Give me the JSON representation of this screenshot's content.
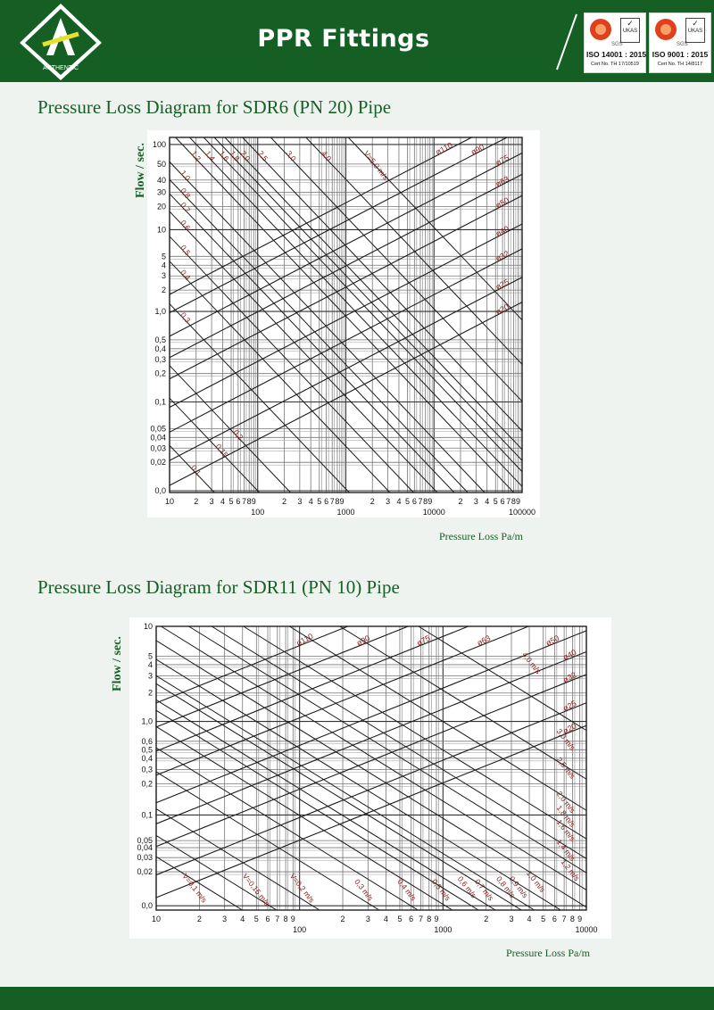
{
  "header": {
    "title": "PPR Fittings",
    "logo_text": "AUTHENTIC",
    "certificates": [
      {
        "iso": "ISO 14001 : 2015",
        "cert_no": "Cert No. TH 17/10519",
        "ukas": "UKAS",
        "sgs": "SGS"
      },
      {
        "iso": "ISO 9001 : 2015",
        "cert_no": "Cert No. TH 14/8117",
        "ukas": "UKAS",
        "sgs": "SGS"
      }
    ],
    "colors": {
      "brand_green": "#155f25",
      "accent_red": "#8b1a1a"
    }
  },
  "sections": [
    {
      "title": "Pressure Loss Diagram for SDR6 (PN 20) Pipe"
    },
    {
      "title": "Pressure Loss Diagram for SDR11 (PN 10) Pipe"
    }
  ],
  "chart_data": [
    {
      "type": "line",
      "title": "Pressure Loss Diagram for SDR6 (PN 20) Pipe",
      "xlabel": "Pressure Loss Pa/m",
      "ylabel": "Flow / sec.",
      "x_scale": "log",
      "y_scale": "log",
      "xlim": [
        10,
        100000
      ],
      "ylim": [
        0.0,
        100
      ],
      "x_ticks": [
        "10",
        "2",
        "3",
        "4",
        "5",
        "6",
        "7",
        "8",
        "9",
        "100",
        "2",
        "3",
        "4",
        "5",
        "6",
        "7",
        "8",
        "9",
        "1000",
        "2",
        "3",
        "4",
        "5",
        "6",
        "7",
        "8",
        "9",
        "10000",
        "2",
        "3",
        "4",
        "5",
        "6",
        "7",
        "8",
        "9",
        "100000"
      ],
      "y_ticks": [
        "100",
        "50",
        "40",
        "30",
        "20",
        "10",
        "5",
        "4",
        "3",
        "2",
        "1,0",
        "0,5",
        "0,4",
        "0,3",
        "0,2",
        "0,1",
        "0,05",
        "0,04",
        "0,03",
        "0,02",
        "0,0"
      ],
      "diameter_series": [
        "ø110",
        "ø90",
        "ø75",
        "ø63",
        "ø50",
        "ø40",
        "ø32",
        "ø25",
        "ø20"
      ],
      "velocity_series": [
        "0,1",
        "0,15",
        "0,2",
        "0,3",
        "0,4",
        "0,5",
        "0,6",
        "0,7",
        "0,8",
        "1,0",
        "1,2",
        "1,4",
        "1,6",
        "1,8",
        "2,0",
        "2,5",
        "3,0",
        "4,0",
        "V=5,0 m/s"
      ],
      "grid": true
    },
    {
      "type": "line",
      "title": "Pressure Loss Diagram for SDR11 (PN 10) Pipe",
      "xlabel": "Pressure Loss Pa/m",
      "ylabel": "Flow / sec.",
      "x_scale": "log",
      "y_scale": "log",
      "xlim": [
        10,
        10000
      ],
      "ylim": [
        0.0,
        10
      ],
      "x_ticks": [
        "10",
        "2",
        "3",
        "4",
        "5",
        "6",
        "7",
        "8",
        "9",
        "100",
        "2",
        "3",
        "4",
        "5",
        "6",
        "7",
        "8",
        "9",
        "1000",
        "2",
        "3",
        "4",
        "5",
        "6",
        "7",
        "8",
        "9",
        "10000"
      ],
      "y_ticks": [
        "10",
        "5",
        "4",
        "3",
        "2",
        "1,0",
        "0,6",
        "0,5",
        "0,4",
        "0,3",
        "0,2",
        "0,1",
        "0,05",
        "0,04",
        "0,03",
        "0,02",
        "0,0"
      ],
      "diameter_series": [
        "ø110",
        "ø90",
        "ø75",
        "ø63",
        "ø50",
        "ø40",
        "ø32",
        "ø25",
        "ø20"
      ],
      "velocity_series": [
        "V=0,1 m/s",
        "V=0,15 m/s",
        "V=0,2 m/s",
        "0,3 m/s",
        "0,4 m/s",
        "0,5 m/s",
        "0,6 m/s",
        "0,7 m/s",
        "0,8 m/s",
        "0,9 m/s",
        "1,0 m/s",
        "1,2 m/s",
        "1,4 m/s",
        "1,6 m/s",
        "1,8 m/s",
        "2,0 m/s",
        "2,5 m/s",
        "3,0 m/s",
        "4,0 m/s"
      ],
      "grid": true
    }
  ]
}
